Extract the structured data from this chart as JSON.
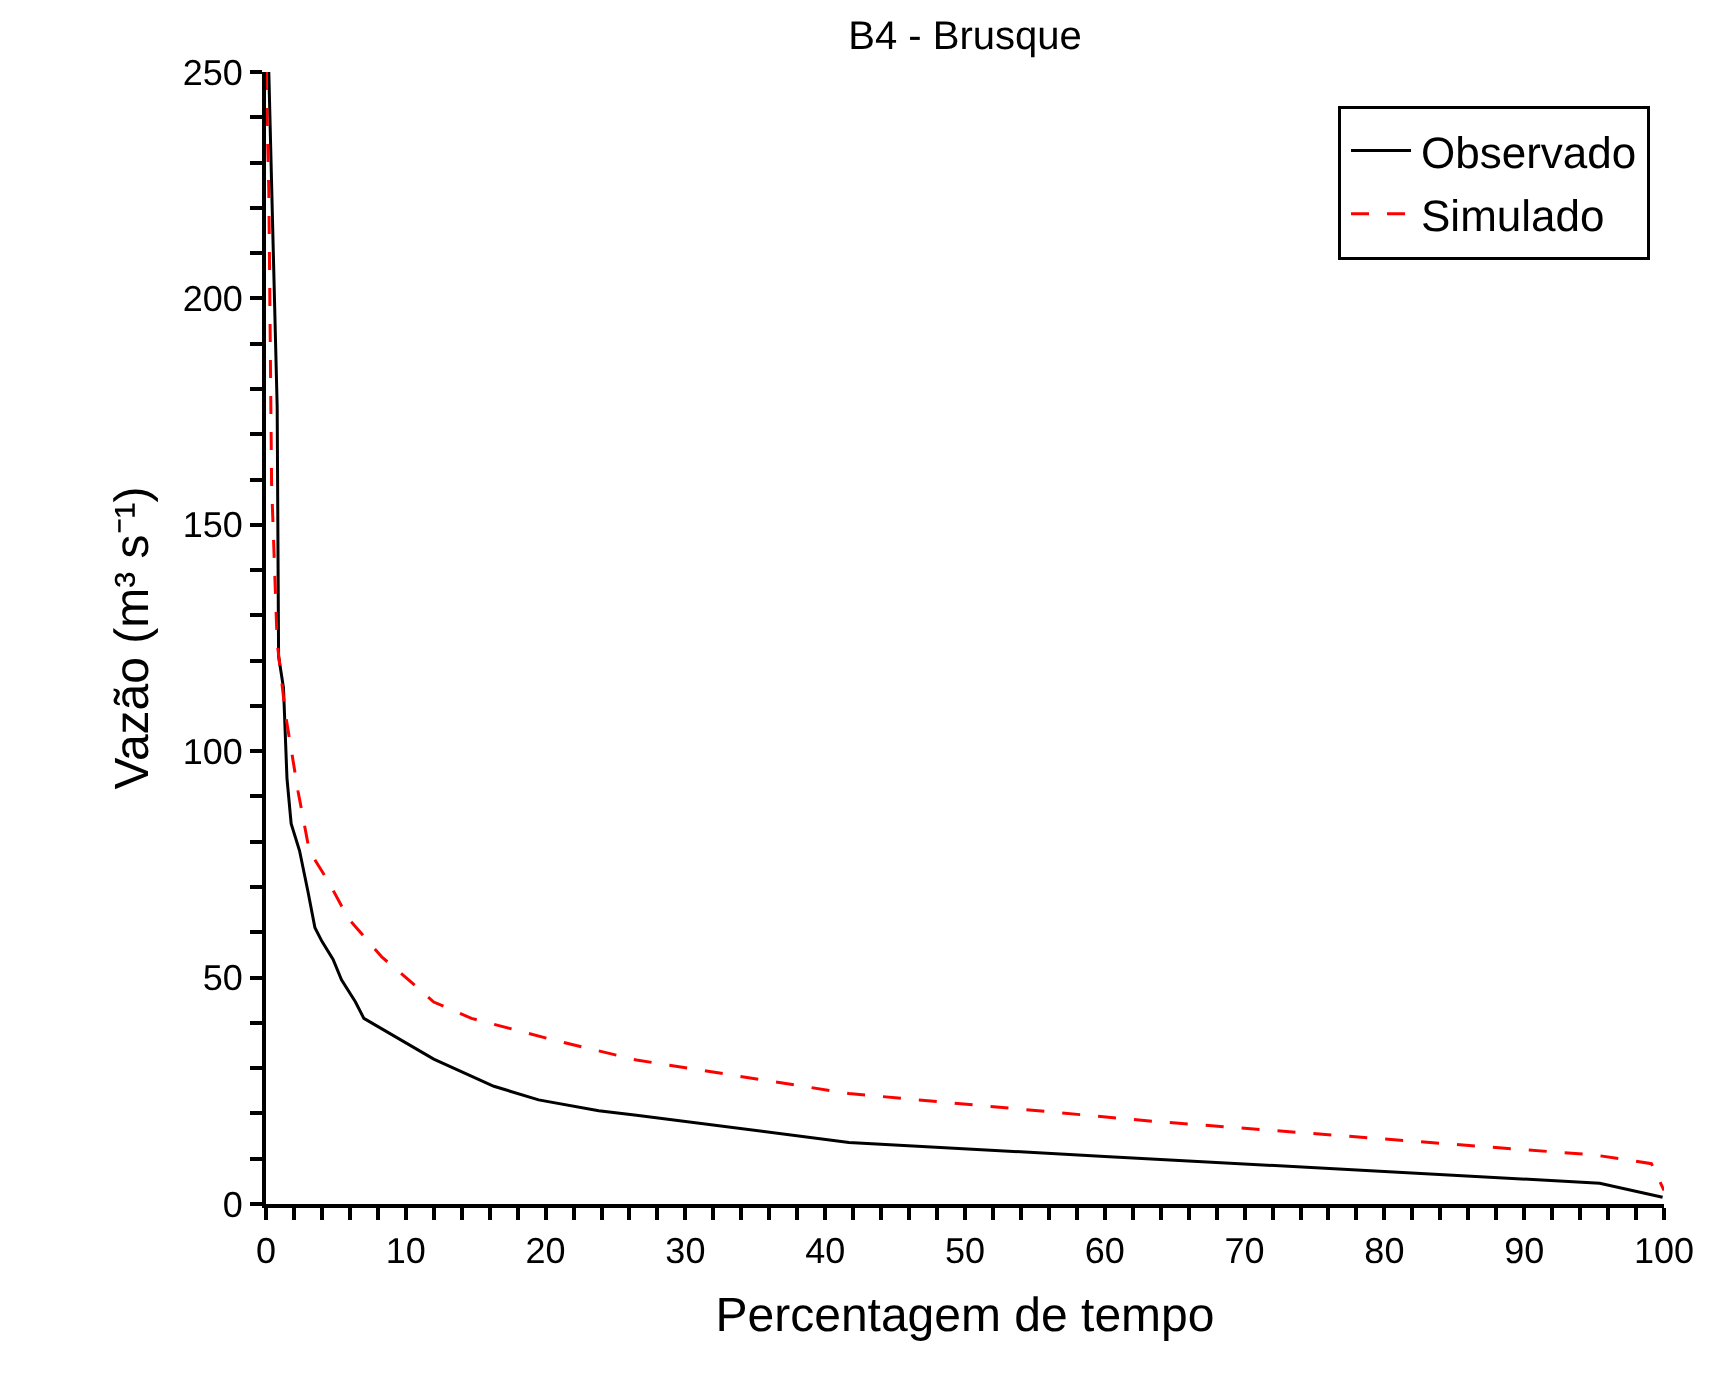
{
  "chart_data": {
    "type": "line",
    "title": "B4 - Brusque",
    "xlabel": "Percentagem de tempo",
    "ylabel": "Vazão (m³ s⁻¹)",
    "xlim": [
      0,
      100
    ],
    "ylim": [
      0,
      250
    ],
    "xticks": [
      0,
      10,
      20,
      30,
      40,
      50,
      60,
      70,
      80,
      90,
      100,
      {
        "value": 2,
        "label": null
      },
      {
        "value": 4,
        "label": null
      },
      {
        "value": 6,
        "label": null
      },
      {
        "value": 8,
        "label": null
      },
      {
        "value": 12,
        "label": null
      },
      {
        "value": 14,
        "label": null
      },
      {
        "value": 16,
        "label": null
      },
      {
        "value": 18,
        "label": null
      },
      {
        "value": 22,
        "label": null
      },
      {
        "value": 24,
        "label": null
      },
      {
        "value": 26,
        "label": null
      },
      {
        "value": 28,
        "label": null
      },
      {
        "value": 32,
        "label": null
      },
      {
        "value": 34,
        "label": null
      },
      {
        "value": 36,
        "label": null
      },
      {
        "value": 38,
        "label": null
      },
      {
        "value": 42,
        "label": null
      },
      {
        "value": 44,
        "label": null
      },
      {
        "value": 46,
        "label": null
      },
      {
        "value": 48,
        "label": null
      },
      {
        "value": 52,
        "label": null
      },
      {
        "value": 54,
        "label": null
      },
      {
        "value": 56,
        "label": null
      },
      {
        "value": 58,
        "label": null
      },
      {
        "value": 62,
        "label": null
      },
      {
        "value": 64,
        "label": null
      },
      {
        "value": 66,
        "label": null
      },
      {
        "value": 68,
        "label": null
      },
      {
        "value": 72,
        "label": null
      },
      {
        "value": 74,
        "label": null
      },
      {
        "value": 76,
        "label": null
      },
      {
        "value": 78,
        "label": null
      },
      {
        "value": 82,
        "label": null
      },
      {
        "value": 84,
        "label": null
      },
      {
        "value": 86,
        "label": null
      },
      {
        "value": 88,
        "label": null
      },
      {
        "value": 92,
        "label": null
      },
      {
        "value": 94,
        "label": null
      },
      {
        "value": 96,
        "label": null
      },
      {
        "value": 98,
        "label": null
      }
    ],
    "yticks": [
      0,
      50,
      100,
      150,
      200,
      250,
      {
        "value": 10,
        "label": null
      },
      {
        "value": 20,
        "label": null
      },
      {
        "value": 30,
        "label": null
      },
      {
        "value": 40,
        "label": null
      },
      {
        "value": 60,
        "label": null
      },
      {
        "value": 70,
        "label": null
      },
      {
        "value": 80,
        "label": null
      },
      {
        "value": 90,
        "label": null
      },
      {
        "value": 110,
        "label": null
      },
      {
        "value": 120,
        "label": null
      },
      {
        "value": 130,
        "label": null
      },
      {
        "value": 140,
        "label": null
      },
      {
        "value": 160,
        "label": null
      },
      {
        "value": 170,
        "label": null
      },
      {
        "value": 180,
        "label": null
      },
      {
        "value": 190,
        "label": null
      },
      {
        "value": 210,
        "label": null
      },
      {
        "value": 220,
        "label": null
      },
      {
        "value": 230,
        "label": null
      },
      {
        "value": 240,
        "label": null
      }
    ],
    "legend": "top right",
    "marker": "none",
    "series": [
      {
        "name": "Observado",
        "color": "#000000",
        "line_style": "solid",
        "x": [
          0.2,
          0.8,
          0.9,
          1.25,
          1.5,
          1.8,
          2.4,
          3.0,
          3.5,
          4.0,
          4.8,
          5.4,
          6.4,
          7.0,
          12.0,
          16.3,
          19.5,
          23.8,
          26.5,
          41.7,
          60,
          80,
          95.4,
          99.9
        ],
        "values": [
          250,
          176,
          121,
          114,
          94,
          84,
          78,
          69,
          61,
          58,
          54,
          49.5,
          44.6,
          41,
          32,
          26,
          23,
          20.6,
          19.6,
          13.6,
          10.5,
          7.2,
          4.6,
          1.5
        ]
      },
      {
        "name": "Simulado",
        "color": "#ff0000",
        "line_style": "dashed",
        "x": [
          0.0,
          0.2,
          0.4,
          0.8,
          1.4,
          2.3,
          3.1,
          4.5,
          5.9,
          8.3,
          10.2,
          12.0,
          14.7,
          20.6,
          26.5,
          41.7,
          63.7,
          95.1,
          99.1,
          100
        ],
        "values": [
          250,
          224,
          159,
          124,
          108,
          91,
          78,
          71,
          63,
          54.5,
          49.5,
          44.6,
          41,
          36.2,
          31.8,
          24.4,
          18.2,
          10.8,
          8.9,
          3
        ]
      }
    ]
  }
}
